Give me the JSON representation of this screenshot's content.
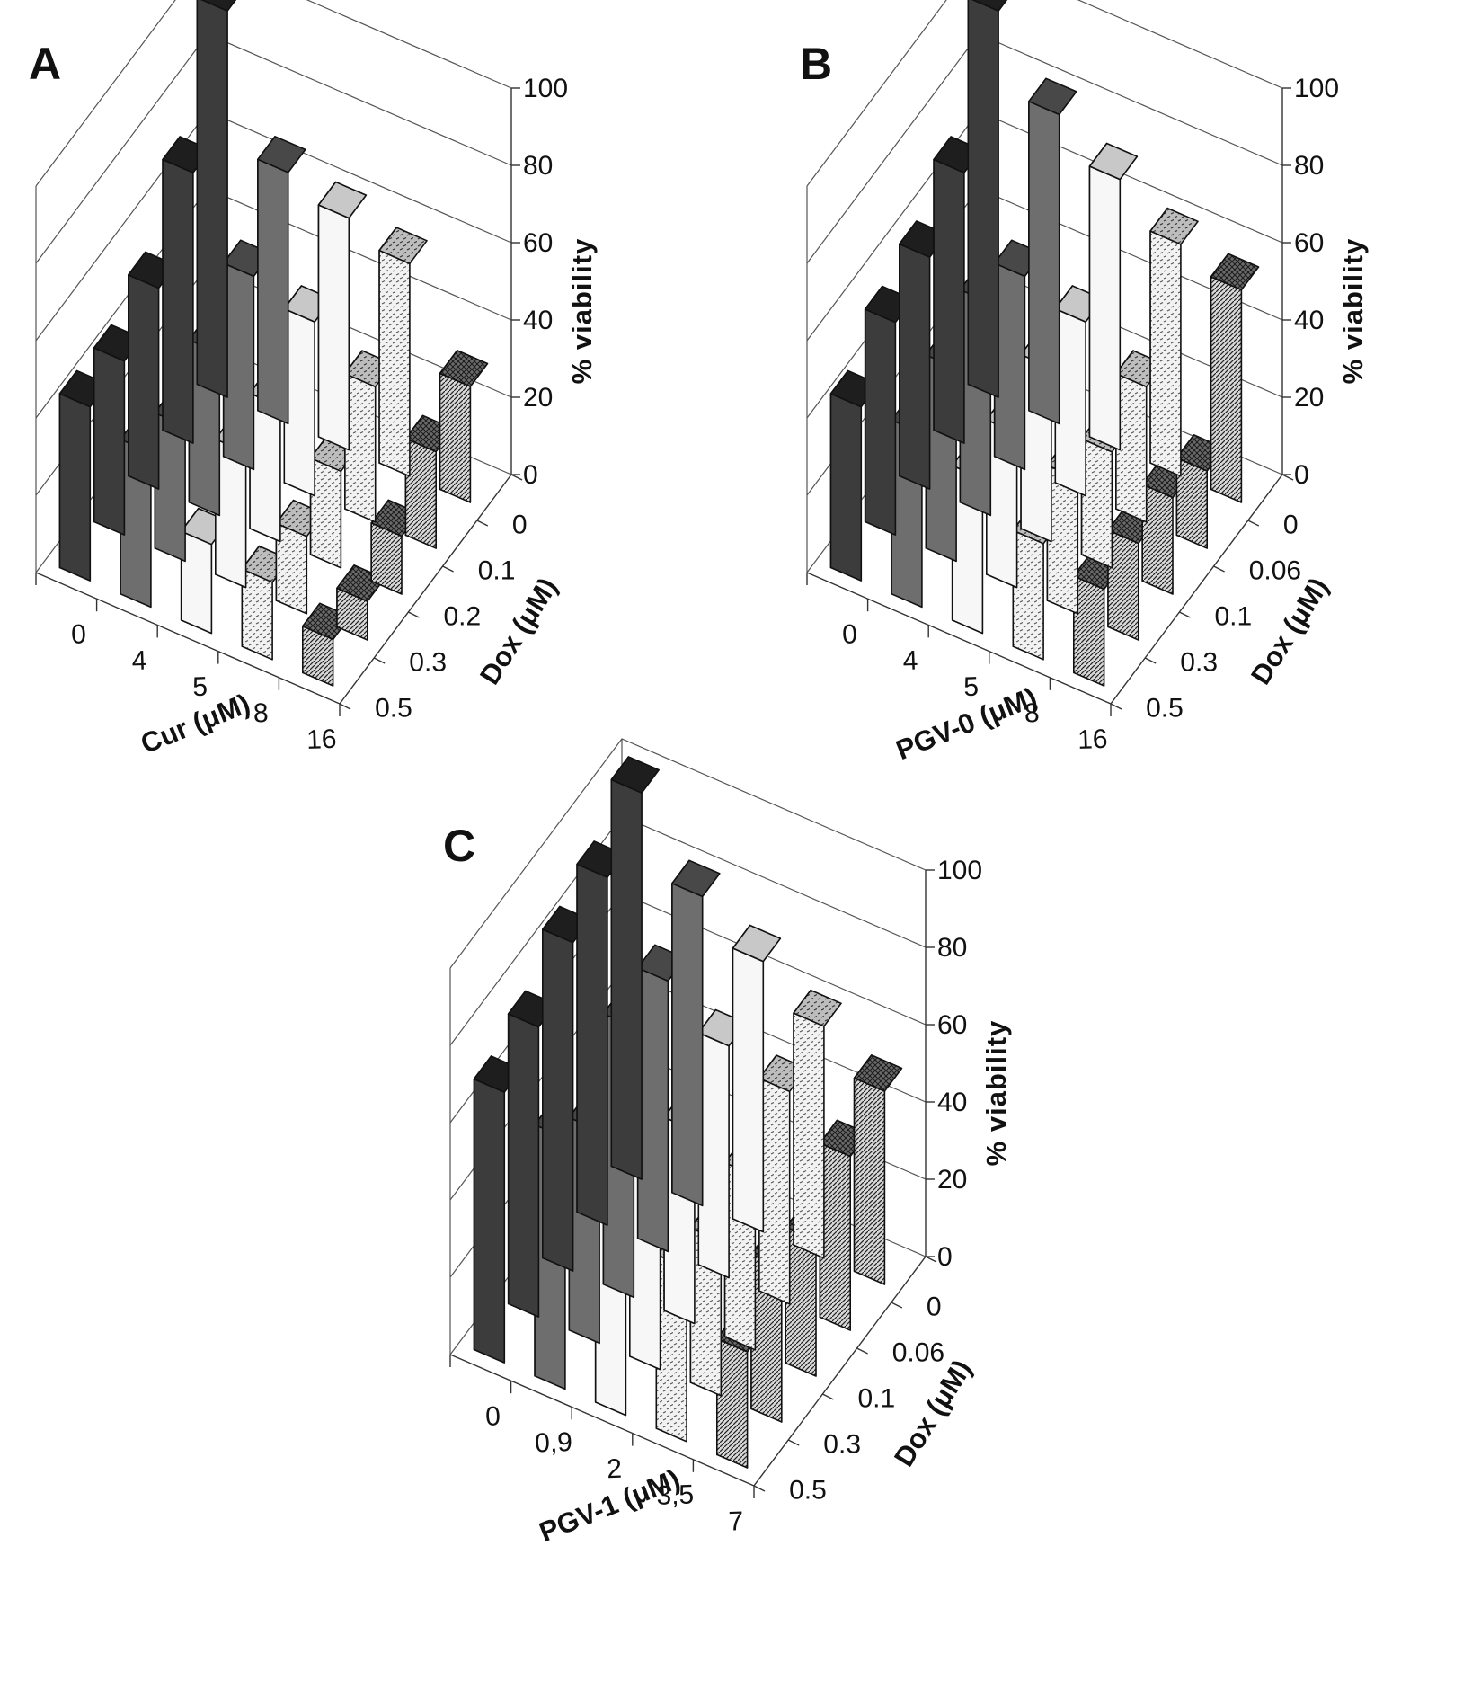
{
  "chart_data": [
    {
      "panel": "A",
      "type": "bar3d",
      "x_label": "Cur (μM)",
      "x_categories": [
        "0",
        "4",
        "5",
        "8",
        "16"
      ],
      "y_label": "Dox (μM)",
      "y_categories": [
        "0",
        "0.1",
        "0.2",
        "0.3",
        "0.5"
      ],
      "z_label": "% viability",
      "z_ticks": [
        "0",
        "20",
        "40",
        "60",
        "80",
        "100"
      ],
      "zlim": [
        0,
        100
      ],
      "values": [
        [
          100,
          65,
          60,
          55,
          30
        ],
        [
          70,
          50,
          45,
          35,
          25
        ],
        [
          52,
          42,
          35,
          25,
          15
        ],
        [
          45,
          35,
          35,
          20,
          10
        ],
        [
          45,
          40,
          23,
          20,
          12
        ]
      ]
    },
    {
      "panel": "B",
      "type": "bar3d",
      "x_label": "PGV-0 (μM)",
      "x_categories": [
        "0",
        "4",
        "5",
        "8",
        "16"
      ],
      "y_label": "Dox (μM)",
      "y_categories": [
        "0",
        "0.06",
        "0.1",
        "0.3",
        "0.5"
      ],
      "z_label": "% viability",
      "z_ticks": [
        "0",
        "20",
        "40",
        "60",
        "80",
        "100"
      ],
      "zlim": [
        0,
        100
      ],
      "values": [
        [
          100,
          80,
          70,
          60,
          55
        ],
        [
          70,
          50,
          45,
          35,
          20
        ],
        [
          60,
          55,
          45,
          30,
          25
        ],
        [
          55,
          50,
          40,
          35,
          25
        ],
        [
          45,
          45,
          40,
          30,
          25
        ]
      ]
    },
    {
      "panel": "C",
      "type": "bar3d",
      "x_label": "PGV-1 (μM)",
      "x_categories": [
        "0",
        "0,9",
        "2",
        "3,5",
        "7"
      ],
      "y_label": "Dox (μM)",
      "y_categories": [
        "0",
        "0.06",
        "0.1",
        "0.3",
        "0.5"
      ],
      "z_label": "% viability",
      "z_ticks": [
        "0",
        "20",
        "40",
        "60",
        "80",
        "100"
      ],
      "zlim": [
        0,
        100
      ],
      "values": [
        [
          100,
          80,
          70,
          60,
          50
        ],
        [
          90,
          70,
          60,
          55,
          45
        ],
        [
          85,
          70,
          50,
          45,
          35
        ],
        [
          75,
          55,
          50,
          40,
          40
        ],
        [
          70,
          65,
          60,
          45,
          30
        ]
      ]
    }
  ],
  "colors": {
    "series_0": "#2b2b2b",
    "series_1": "#5c5c5c",
    "series_2_front": "#a3a3a3",
    "series_2_side": "#f7f7f7",
    "series_3": "#b9b9b9",
    "series_4": "#5a5a5a"
  }
}
